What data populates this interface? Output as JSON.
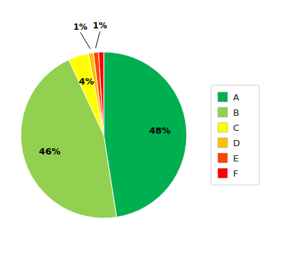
{
  "chart_data": {
    "type": "pie",
    "categories": [
      "A",
      "B",
      "C",
      "D",
      "E",
      "F"
    ],
    "values": [
      48,
      46,
      4,
      1,
      1,
      1
    ],
    "value_labels": [
      "48%",
      "46%",
      "4%",
      "1%",
      "1%",
      null
    ],
    "colors": [
      "#00b050",
      "#92d050",
      "#ffff00",
      "#ffc000",
      "#ff4400",
      "#ff0000"
    ],
    "data_labels": true,
    "legend": "right"
  }
}
